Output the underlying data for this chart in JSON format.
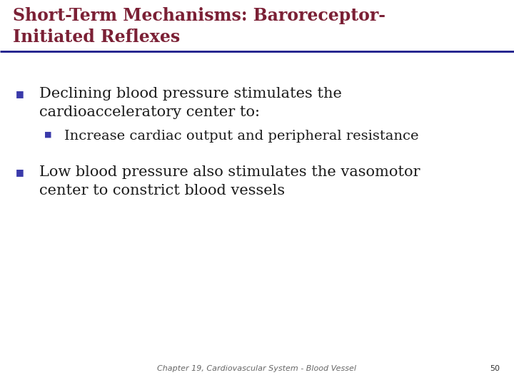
{
  "title_line1": "Short-Term Mechanisms: Baroreceptor-",
  "title_line2": "Initiated Reflexes",
  "title_color": "#7B2035",
  "title_fontsize": 17,
  "bg_color": "#FFFFFF",
  "divider_color": "#1C1C8A",
  "bullet_color": "#3A3AAA",
  "bullet1_line1": "Declining blood pressure stimulates the",
  "bullet1_line2": "cardioacceleratory center to:",
  "sub_bullet": "Increase cardiac output and peripheral resistance",
  "bullet2_line1": "Low blood pressure also stimulates the vasomotor",
  "bullet2_line2": "center to constrict blood vessels",
  "body_fontsize": 15,
  "sub_fontsize": 14,
  "footer_text": "Chapter 19, Cardiovascular System - Blood Vessel",
  "footer_page": "50",
  "footer_fontsize": 8
}
